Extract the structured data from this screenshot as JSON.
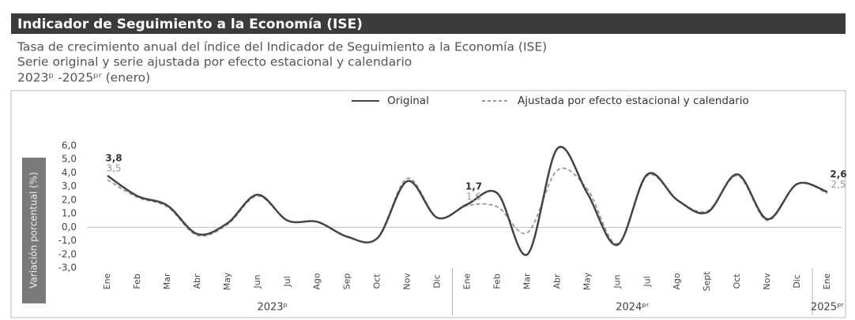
{
  "chart_data": {
    "type": "line",
    "title": "Indicador de Seguimiento a la Economía (ISE)",
    "subtitle": [
      "Tasa de crecimiento anual del índice del Indicador de Seguimiento a la Economía (ISE)",
      "Serie original y serie ajustada por efecto estacional y calendario",
      "2023ᵖ -2025ᵖʳ (enero)"
    ],
    "y_label": "Variación porcentual (%)",
    "categories": [
      "Ene",
      "Feb",
      "Mar",
      "Abr",
      "May",
      "Jun",
      "Jul",
      "Ago",
      "Sep",
      "Oct",
      "Nov",
      "Dic",
      "Ene",
      "Feb",
      "Mar",
      "Abr",
      "May",
      "Jun",
      "Jul",
      "Ago",
      "Sept",
      "Oct",
      "Nov",
      "Dic",
      "Ene"
    ],
    "year_labels": [
      "2023ᵖ",
      "2024ᵖʳ",
      "2025ᵖʳ"
    ],
    "series": [
      {
        "name": "Original",
        "color": "#444444",
        "dash": false,
        "values": [
          3.8,
          2.3,
          1.6,
          -0.5,
          0.3,
          2.4,
          0.5,
          0.4,
          -0.7,
          -0.8,
          3.4,
          0.7,
          1.7,
          2.5,
          -2.0,
          5.8,
          2.5,
          -1.3,
          3.9,
          2.0,
          1.1,
          3.9,
          0.6,
          3.2,
          2.6
        ],
        "value_labels": [
          "3,8",
          null,
          null,
          null,
          null,
          null,
          null,
          null,
          null,
          null,
          null,
          null,
          "1,7",
          null,
          null,
          null,
          null,
          null,
          null,
          null,
          null,
          null,
          null,
          null,
          "2,6"
        ]
      },
      {
        "name": "Ajustada por efecto estacional y calendario",
        "color": "#999999",
        "dash": true,
        "values": [
          3.5,
          2.2,
          1.5,
          -0.6,
          0.2,
          2.3,
          0.5,
          0.4,
          -0.7,
          -0.8,
          3.6,
          0.7,
          1.6,
          1.5,
          -0.4,
          4.2,
          2.8,
          -1.2,
          3.8,
          2.0,
          1.2,
          3.8,
          0.5,
          3.2,
          2.5
        ],
        "value_labels": [
          "3,5",
          null,
          null,
          null,
          null,
          null,
          null,
          null,
          null,
          null,
          null,
          null,
          "1,6",
          null,
          null,
          null,
          null,
          null,
          null,
          null,
          null,
          null,
          null,
          null,
          "2,5"
        ]
      }
    ],
    "ylim": [
      -3.0,
      6.0
    ],
    "yticks": [
      {
        "value": 6,
        "label": "6,0"
      },
      {
        "value": 5,
        "label": "5,0"
      },
      {
        "value": 4,
        "label": "4,0"
      },
      {
        "value": 3,
        "label": "3,0"
      },
      {
        "value": 2,
        "label": "2,0"
      },
      {
        "value": 1,
        "label": "1,0"
      },
      {
        "value": 0,
        "label": "0,0"
      },
      {
        "value": -1,
        "label": "-1,0"
      },
      {
        "value": -2,
        "label": "-2,0"
      },
      {
        "value": -3,
        "label": "-3,0"
      }
    ],
    "legend": "top-right"
  }
}
